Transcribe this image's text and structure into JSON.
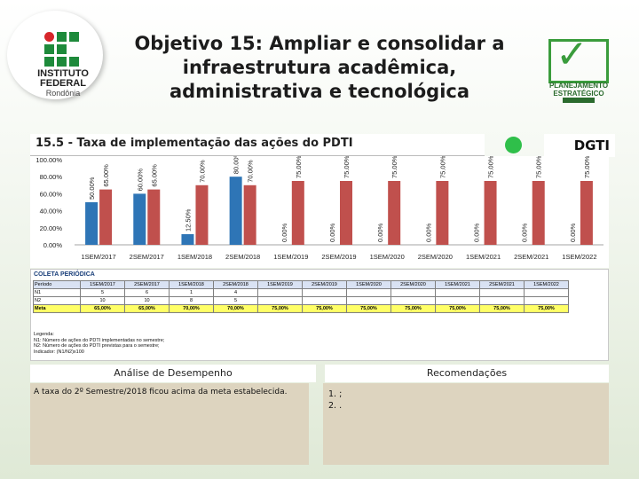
{
  "header": {
    "logo_left": {
      "line1": "INSTITUTO",
      "line2": "FEDERAL",
      "line3": "Rondônia"
    },
    "title": "Objetivo 15: Ampliar e consolidar a infraestrutura acadêmica, administrativa e tecnológica",
    "logo_right": {
      "line1": "PLANEJAMENTO",
      "line2": "ESTRATÉGICO"
    }
  },
  "section": {
    "title": "15.5 - Taxa de implementação das ações do PDTI",
    "status_color": "#2fbf4a",
    "department": "DGTI"
  },
  "chart_data": {
    "type": "bar",
    "categories": [
      "1SEM/2017",
      "2SEM/2017",
      "1SEM/2018",
      "2SEM/2018",
      "1SEM/2019",
      "2SEM/2019",
      "1SEM/2020",
      "2SEM/2020",
      "1SEM/2021",
      "2SEM/2021",
      "1SEM/2022"
    ],
    "series": [
      {
        "values": [
          50,
          60,
          12.5,
          80,
          0,
          0,
          0,
          0,
          0,
          0,
          0
        ],
        "labels": [
          "50.00%",
          "60.00%",
          "12.50%",
          "80.00%",
          "0.00%",
          "0.00%",
          "0.00%",
          "0.00%",
          "0.00%",
          "0.00%",
          "0.00%"
        ],
        "color": "#2e75b6"
      },
      {
        "values": [
          65,
          65,
          70,
          70,
          75,
          75,
          75,
          75,
          75,
          75,
          75
        ],
        "labels": [
          "65.00%",
          "65.00%",
          "70.00%",
          "70.00%",
          "75.00%",
          "75.00%",
          "75.00%",
          "75.00%",
          "75.00%",
          "75.00%",
          "75.00%"
        ],
        "color": "#c0504d"
      }
    ],
    "yticks": [
      "0.00%",
      "20.00%",
      "40.00%",
      "60.00%",
      "80.00%",
      "100.00%"
    ],
    "ylim": [
      0,
      100
    ],
    "grid": false
  },
  "table": {
    "title": "COLETA PERIÓDICA",
    "header": [
      "Período",
      "1SEM/2017",
      "2SEM/2017",
      "1SEM/2018",
      "2SEM/2018",
      "1SEM/2019",
      "2SEM/2019",
      "1SEM/2020",
      "2SEM/2020",
      "1SEM/2021",
      "2SEM/2021",
      "1SEM/2022"
    ],
    "rows": [
      [
        "N1",
        "5",
        "6",
        "1",
        "4",
        "",
        "",
        "",
        "",
        "",
        "",
        ""
      ],
      [
        "N2",
        "10",
        "10",
        "8",
        "5",
        "",
        "",
        "",
        "",
        "",
        "",
        ""
      ],
      [
        "Meta",
        "65,00%",
        "65,00%",
        "70,00%",
        "70,00%",
        "75,00%",
        "75,00%",
        "75,00%",
        "75,00%",
        "75,00%",
        "75,00%",
        "75,00%"
      ]
    ],
    "legend": {
      "title": "Legenda:",
      "line1": "N1: Número de ações do PDTI implementadas no semestre;",
      "line2": "N2: Número de ações do PDTI previstas para o semestre;",
      "line3": "Indicador: (N1/N2)x100"
    }
  },
  "analysis": {
    "title": "Análise de Desempenho",
    "text": "A taxa do 2º Semestre/2018 ficou acima da meta estabelecida."
  },
  "recommendations": {
    "title": "Recomendações",
    "items": [
      "1.   ;",
      "2.   ."
    ]
  }
}
